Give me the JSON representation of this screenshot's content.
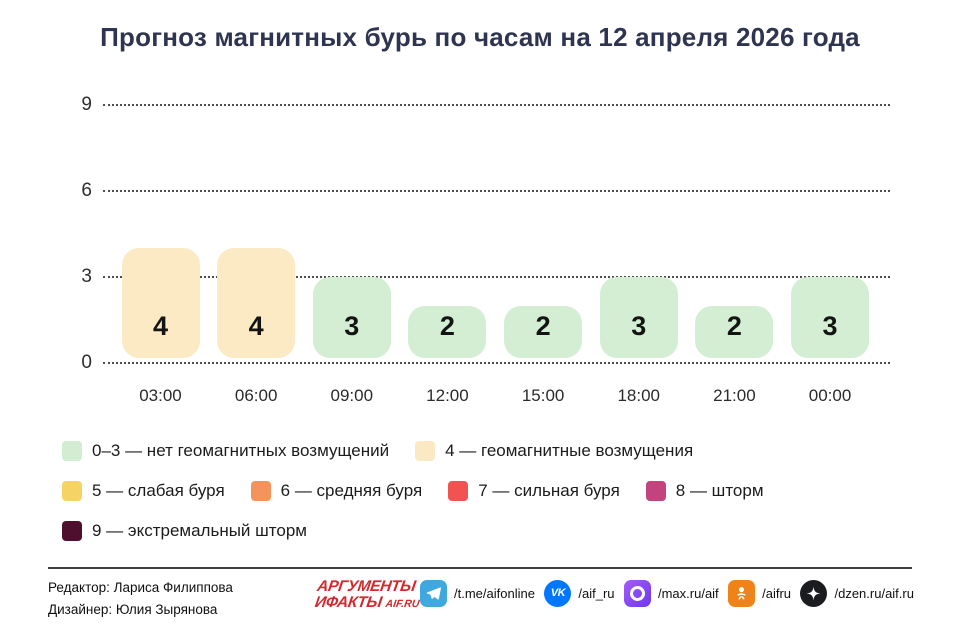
{
  "title": "Прогноз магнитных бурь по часам на 12 апреля 2026 года",
  "chart_data": {
    "type": "bar",
    "categories": [
      "03:00",
      "06:00",
      "09:00",
      "12:00",
      "15:00",
      "18:00",
      "21:00",
      "00:00"
    ],
    "values": [
      4,
      4,
      3,
      2,
      2,
      3,
      2,
      3
    ],
    "yticks": [
      0,
      3,
      6,
      9
    ],
    "ylim": [
      0,
      9
    ],
    "grid": "horizontal-dotted",
    "bar_colors": {
      "normal": "#d4eed4",
      "elevated": "#fbeac4"
    },
    "elevated_threshold": 4,
    "title": "Прогноз магнитных бурь по часам на 12 апреля 2026 года",
    "xlabel": "",
    "ylabel": ""
  },
  "legend": {
    "items": [
      {
        "label": "0–3 — нет геомагнитных возмущений",
        "color": "#d2edd2"
      },
      {
        "label": "4 — геомагнитные возмущения",
        "color": "#fbe9c3"
      },
      {
        "label": "5 — слабая буря",
        "color": "#f6d365"
      },
      {
        "label": "6 — средняя буря",
        "color": "#f4935c"
      },
      {
        "label": "7 — сильная буря",
        "color": "#f05351"
      },
      {
        "label": "8 — шторм",
        "color": "#c3437e"
      },
      {
        "label": "9 — экстремальный шторм",
        "color": "#4e0e2d"
      }
    ]
  },
  "footer": {
    "editor": "Редактор: Лариса Филиппова",
    "designer": "Дизайнер: Юлия Зырянова",
    "logo": {
      "line1": "АРГУМЕНТЫ",
      "line2": "ИФАКТЫ",
      "suffix": "AIF.RU"
    },
    "socials": [
      {
        "icon": "telegram-icon",
        "label": "/t.me/aifonline",
        "color": "#40a8e0",
        "shape": "rounded"
      },
      {
        "icon": "vk-icon",
        "label": "/aif_ru",
        "color": "#0077ff",
        "shape": "circle"
      },
      {
        "icon": "max-icon",
        "label": "/max.ru/aif",
        "color": "#8a4bf0",
        "shape": "rounded"
      },
      {
        "icon": "ok-icon",
        "label": "/aifru",
        "color": "#ef8318",
        "shape": "rounded"
      },
      {
        "icon": "dzen-icon",
        "label": "/dzen.ru/aif.ru",
        "color": "#1b1c20",
        "shape": "circle"
      }
    ]
  }
}
